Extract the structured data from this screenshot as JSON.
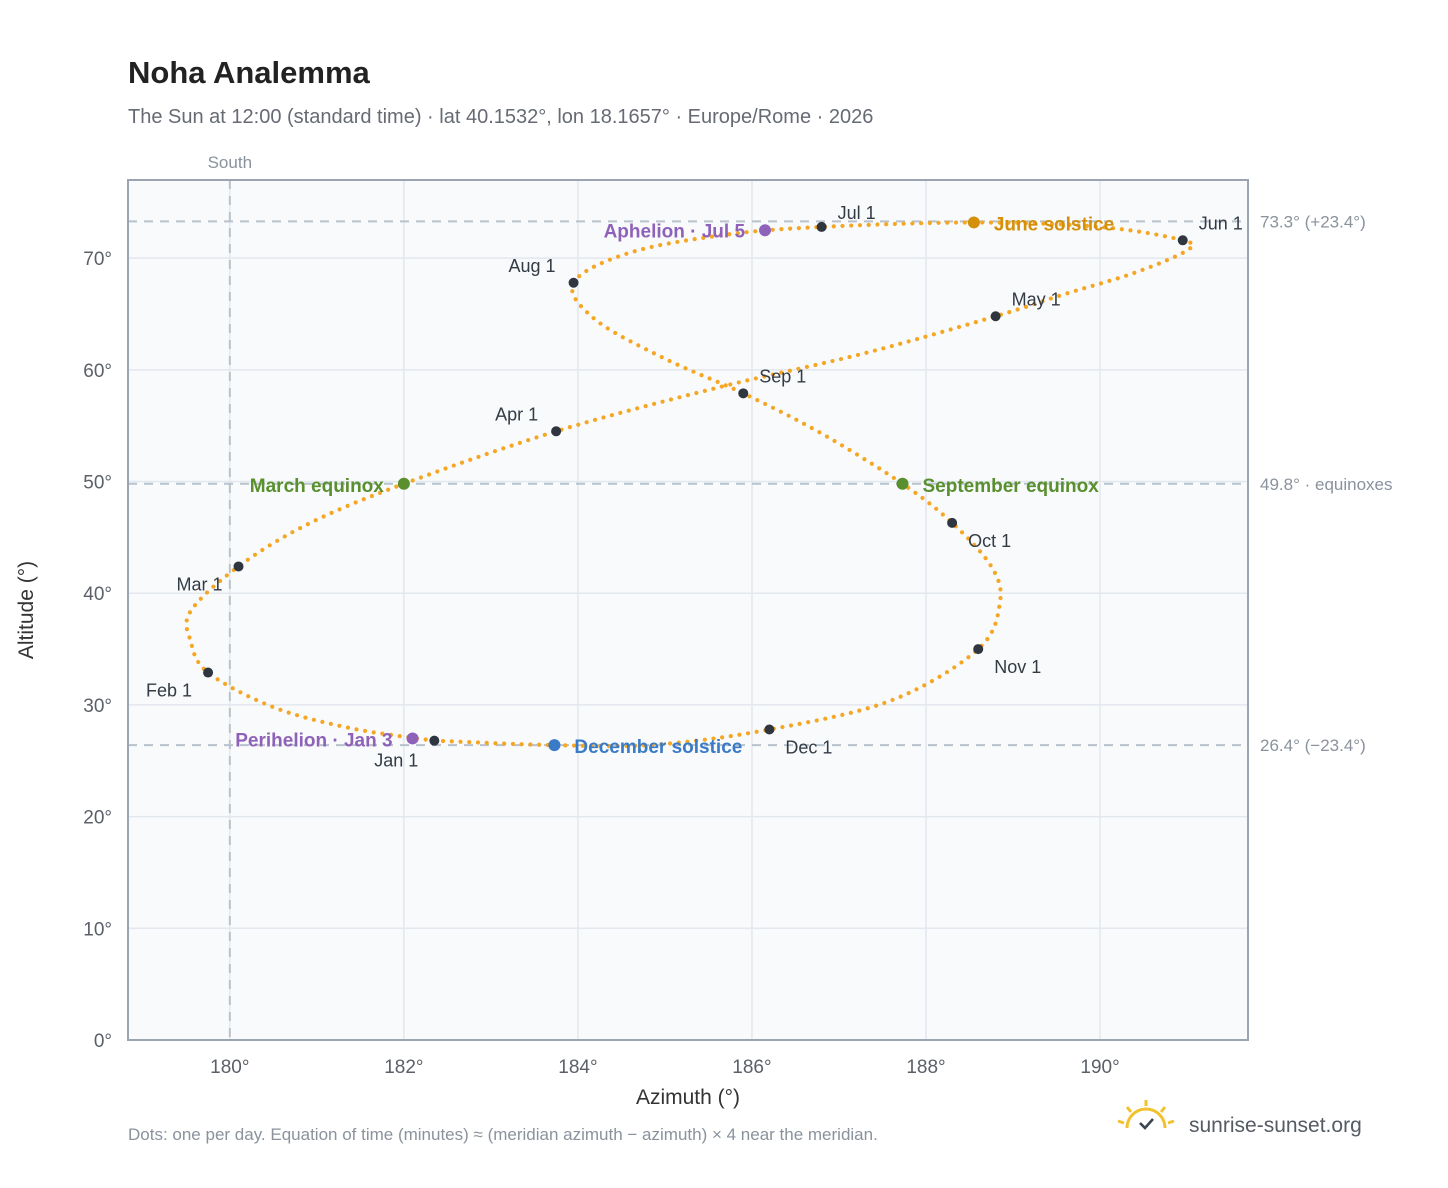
{
  "header": {
    "title": "Noha Analemma",
    "subtitle": "The Sun at 12:00 (standard time) · lat 40.1532°, lon 18.1657° · Europe/Rome · 2026"
  },
  "footer": {
    "note": "Dots: one per day. Equation of time (minutes) ≈ (meridian azimuth − azimuth) × 4 near the meridian.",
    "brand": "sunrise-sunset.org",
    "brand_icon": "sun-check-icon"
  },
  "colors": {
    "curve": "#f5a623",
    "month_dot": "#2f3640",
    "june_solstice": "#d4900a",
    "december_solstice": "#3a7bc8",
    "equinox": "#5a8f2e",
    "apsis": "#8e62b8",
    "guide": "#b8c2cc",
    "plot_bg": "#f8fafc",
    "frame": "#9aa5b1",
    "grid": "#e3e8ee"
  },
  "chart_data": {
    "type": "scatter",
    "title": "Noha Analemma",
    "xlabel": "Azimuth (°)",
    "ylabel": "Altitude (°)",
    "xlim": [
      178.83,
      191.7
    ],
    "ylim": [
      0,
      77
    ],
    "x_ticks": [
      180,
      182,
      184,
      186,
      188,
      190
    ],
    "x_tick_labels": [
      "180°",
      "182°",
      "184°",
      "186°",
      "188°",
      "190°"
    ],
    "y_ticks": [
      0,
      10,
      20,
      30,
      40,
      50,
      60,
      70
    ],
    "y_tick_labels": [
      "0°",
      "10°",
      "20°",
      "30°",
      "40°",
      "50°",
      "60°",
      "70°"
    ],
    "grid": true,
    "meridian": {
      "azimuth": 180,
      "label": "South"
    },
    "guides": [
      {
        "altitude": 73.3,
        "label": "73.3° (+23.4°)"
      },
      {
        "altitude": 49.8,
        "label": "49.8° · equinoxes"
      },
      {
        "altitude": 26.4,
        "label": "26.4° (−23.4°)"
      }
    ],
    "month_points": [
      {
        "label": "Jan 1",
        "az": 182.35,
        "alt": 26.8
      },
      {
        "label": "Feb 1",
        "az": 179.75,
        "alt": 32.9
      },
      {
        "label": "Mar 1",
        "az": 180.1,
        "alt": 42.4
      },
      {
        "label": "Apr 1",
        "az": 183.75,
        "alt": 54.5
      },
      {
        "label": "May 1",
        "az": 188.8,
        "alt": 64.8
      },
      {
        "label": "Jun 1",
        "az": 190.95,
        "alt": 71.6
      },
      {
        "label": "Jul 1",
        "az": 186.8,
        "alt": 72.8
      },
      {
        "label": "Aug 1",
        "az": 183.95,
        "alt": 67.8
      },
      {
        "label": "Sep 1",
        "az": 185.9,
        "alt": 57.9
      },
      {
        "label": "Oct 1",
        "az": 188.3,
        "alt": 46.3
      },
      {
        "label": "Nov 1",
        "az": 188.6,
        "alt": 35.0
      },
      {
        "label": "Dec 1",
        "az": 186.2,
        "alt": 27.8
      }
    ],
    "events": [
      {
        "label": "June solstice",
        "az": 188.55,
        "alt": 73.2,
        "color_key": "june_solstice"
      },
      {
        "label": "December solstice",
        "az": 183.73,
        "alt": 26.4,
        "color_key": "december_solstice"
      },
      {
        "label": "March equinox",
        "az": 182.0,
        "alt": 49.8,
        "color_key": "equinox"
      },
      {
        "label": "September equinox",
        "az": 187.73,
        "alt": 49.8,
        "color_key": "equinox"
      },
      {
        "label": "Aphelion · Jul 5",
        "az": 186.15,
        "alt": 72.5,
        "color_key": "apsis"
      },
      {
        "label": "Perihelion · Jan 3",
        "az": 182.1,
        "alt": 27.0,
        "color_key": "apsis"
      }
    ],
    "curve_path": [
      [
        182.35,
        26.8
      ],
      [
        183.73,
        26.4
      ],
      [
        184.9,
        26.45
      ],
      [
        186.2,
        27.8
      ],
      [
        187.6,
        30.4
      ],
      [
        188.6,
        35.0
      ],
      [
        188.85,
        39.2
      ],
      [
        188.75,
        42.4
      ],
      [
        188.3,
        46.3
      ],
      [
        187.73,
        49.8
      ],
      [
        186.8,
        54.3
      ],
      [
        185.9,
        57.9
      ],
      [
        185.0,
        61.0
      ],
      [
        184.2,
        64.5
      ],
      [
        183.95,
        67.8
      ],
      [
        184.6,
        70.5
      ],
      [
        185.7,
        72.1
      ],
      [
        186.8,
        72.8
      ],
      [
        188.55,
        73.2
      ],
      [
        190.0,
        72.8
      ],
      [
        190.95,
        71.6
      ],
      [
        191.0,
        70.7
      ],
      [
        190.4,
        68.7
      ],
      [
        189.6,
        66.8
      ],
      [
        188.8,
        64.8
      ],
      [
        187.3,
        61.5
      ],
      [
        185.6,
        58.4
      ],
      [
        183.75,
        54.5
      ],
      [
        182.0,
        49.8
      ],
      [
        180.9,
        46.2
      ],
      [
        180.1,
        42.4
      ],
      [
        179.55,
        38.4
      ],
      [
        179.55,
        35.7
      ],
      [
        179.75,
        32.9
      ],
      [
        180.5,
        29.8
      ],
      [
        181.4,
        27.9
      ],
      [
        182.35,
        26.8
      ]
    ]
  }
}
